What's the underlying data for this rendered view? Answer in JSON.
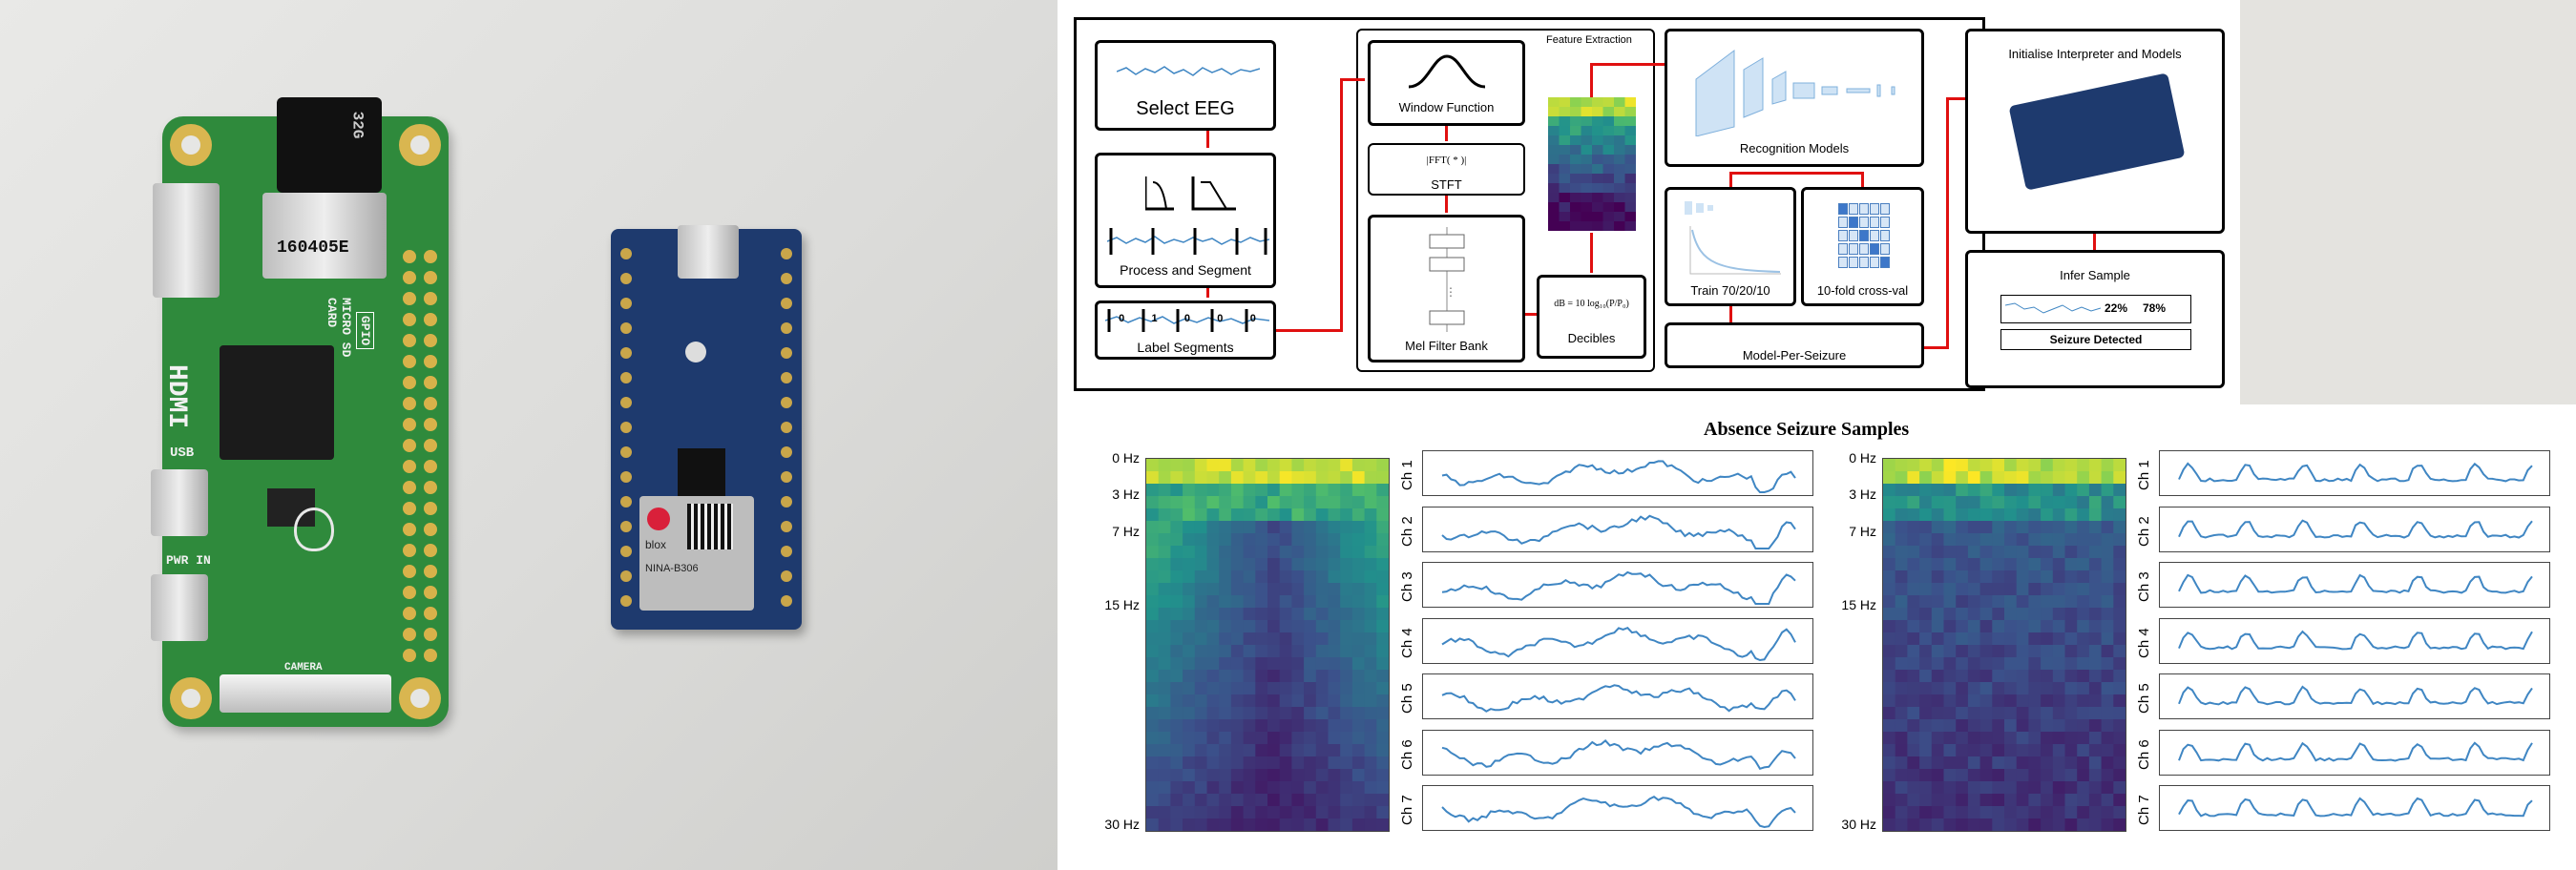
{
  "photo": {
    "rpi": {
      "silk_labels": [
        "32G",
        "160405E",
        "MICRO SD CARD",
        "GPIO",
        "HDMI",
        "USB",
        "PWR IN",
        "CAMERA"
      ]
    },
    "arduino": {
      "module_text": [
        "blox",
        "NINA-B306"
      ]
    }
  },
  "diagram": {
    "feature_title": "Feature Extraction",
    "select_eeg": "Select EEG",
    "process_segment": "Process and Segment",
    "label_segments": "Label Segments",
    "label_values": [
      "0",
      "1",
      "0",
      "0",
      "0"
    ],
    "window_function": "Window Function",
    "fft_formula": "|FFT( * )|",
    "stft": "STFT",
    "mel_filter_bank": "Mel Filter Bank",
    "db_formula": "dB = 10 log₁₀(P/P₀)",
    "decibles": "Decibles",
    "recognition_models": "Recognition Models",
    "train": "Train 70/20/10",
    "crossval": "10-fold cross-val",
    "model_per_seizure": "Model-Per-Seizure",
    "init_models": "Initialise Interpreter and Models",
    "infer_sample": "Infer Sample",
    "pct_a": "22%",
    "pct_b": "78%",
    "seizure_detected": "Seizure Detected"
  },
  "charts": {
    "title": "Absence Seizure Samples",
    "freq_ticks": [
      "0 Hz",
      "3 Hz",
      "7 Hz",
      "15 Hz",
      "30 Hz"
    ],
    "channels": [
      "Ch 1",
      "Ch 2",
      "Ch 3",
      "Ch 4",
      "Ch 5",
      "Ch 6",
      "Ch 7"
    ]
  },
  "colors": {
    "pcb_green": "#2f8a3c",
    "arduino_blue": "#1e3a6e",
    "arrow_red": "#e01010",
    "trace_blue": "#3f86c3"
  },
  "chart_data": [
    {
      "type": "heatmap",
      "title": "Absence Seizure Samples",
      "ylabel": "",
      "y_ticks": [
        "0 Hz",
        "3 Hz",
        "7 Hz",
        "15 Hz",
        "30 Hz"
      ],
      "description_colormap": "viridis",
      "sample": 1
    },
    {
      "type": "line",
      "series": [
        {
          "name": "Ch 1"
        },
        {
          "name": "Ch 2"
        },
        {
          "name": "Ch 3"
        },
        {
          "name": "Ch 4"
        },
        {
          "name": "Ch 5"
        },
        {
          "name": "Ch 6"
        },
        {
          "name": "Ch 7"
        }
      ],
      "sample": 1
    },
    {
      "type": "heatmap",
      "y_ticks": [
        "0 Hz",
        "3 Hz",
        "7 Hz",
        "15 Hz",
        "30 Hz"
      ],
      "sample": 2
    },
    {
      "type": "line",
      "series": [
        {
          "name": "Ch 1"
        },
        {
          "name": "Ch 2"
        },
        {
          "name": "Ch 3"
        },
        {
          "name": "Ch 4"
        },
        {
          "name": "Ch 5"
        },
        {
          "name": "Ch 6"
        },
        {
          "name": "Ch 7"
        }
      ],
      "sample": 2
    }
  ]
}
